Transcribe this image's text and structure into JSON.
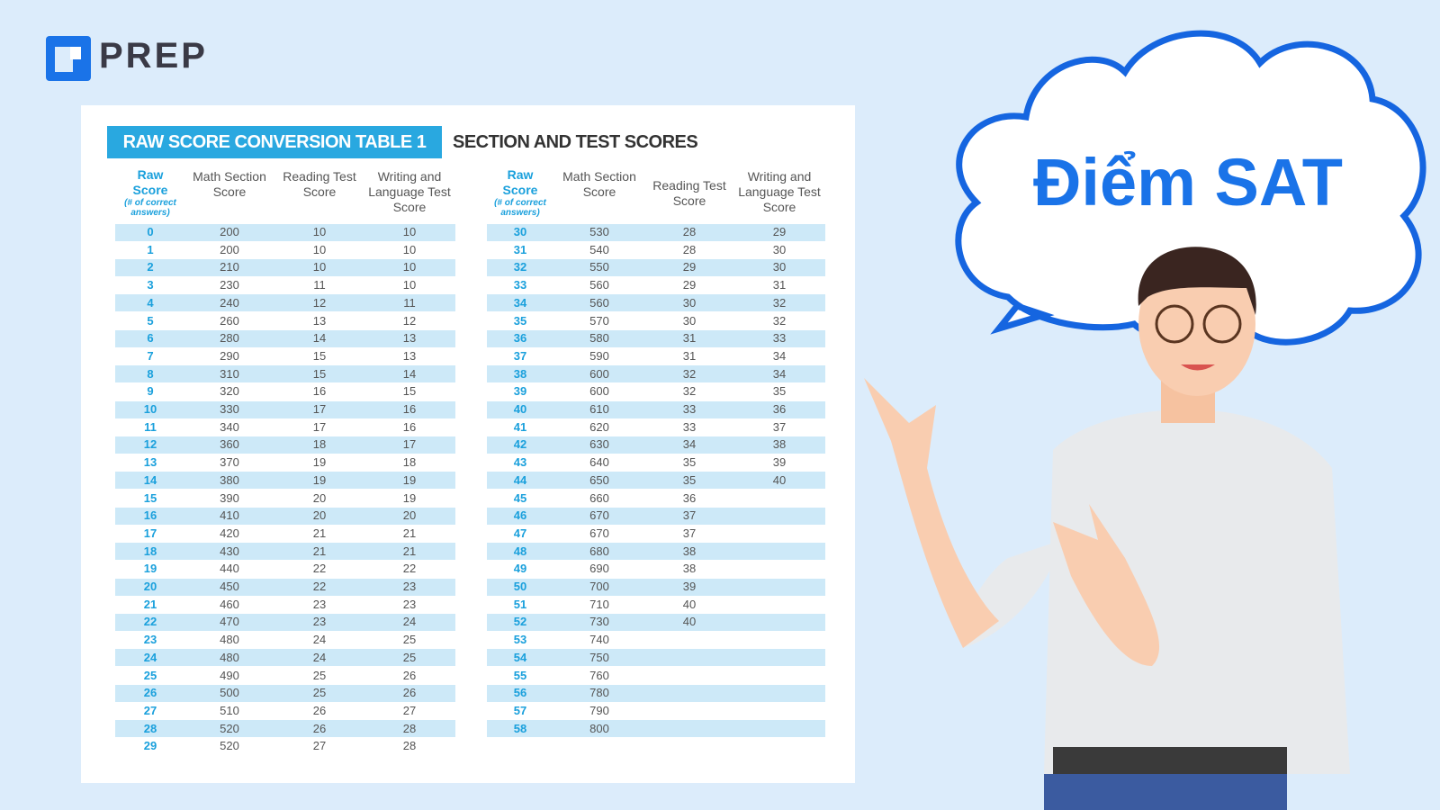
{
  "logo": {
    "text": "PREP"
  },
  "card": {
    "title": "RAW SCORE CONVERSION TABLE 1",
    "subtitle": "SECTION AND TEST SCORES"
  },
  "tables": [
    {
      "headers": [
        "Raw Score",
        "Math Section Score",
        "Reading Test Score",
        "Writing and Language Test Score"
      ],
      "note": "(# of correct answers)",
      "rows": [
        [
          0,
          200,
          10,
          10
        ],
        [
          1,
          200,
          10,
          10
        ],
        [
          2,
          210,
          10,
          10
        ],
        [
          3,
          230,
          11,
          10
        ],
        [
          4,
          240,
          12,
          11
        ],
        [
          5,
          260,
          13,
          12
        ],
        [
          6,
          280,
          14,
          13
        ],
        [
          7,
          290,
          15,
          13
        ],
        [
          8,
          310,
          15,
          14
        ],
        [
          9,
          320,
          16,
          15
        ],
        [
          10,
          330,
          17,
          16
        ],
        [
          11,
          340,
          17,
          16
        ],
        [
          12,
          360,
          18,
          17
        ],
        [
          13,
          370,
          19,
          18
        ],
        [
          14,
          380,
          19,
          19
        ],
        [
          15,
          390,
          20,
          19
        ],
        [
          16,
          410,
          20,
          20
        ],
        [
          17,
          420,
          21,
          21
        ],
        [
          18,
          430,
          21,
          21
        ],
        [
          19,
          440,
          22,
          22
        ],
        [
          20,
          450,
          22,
          23
        ],
        [
          21,
          460,
          23,
          23
        ],
        [
          22,
          470,
          23,
          24
        ],
        [
          23,
          480,
          24,
          25
        ],
        [
          24,
          480,
          24,
          25
        ],
        [
          25,
          490,
          25,
          26
        ],
        [
          26,
          500,
          25,
          26
        ],
        [
          27,
          510,
          26,
          27
        ],
        [
          28,
          520,
          26,
          28
        ],
        [
          29,
          520,
          27,
          28
        ]
      ]
    },
    {
      "headers": [
        "Raw Score",
        "Math Section Score",
        "Reading Test Score",
        "Writing and Language Test Score"
      ],
      "note": "(# of correct answers)",
      "rows": [
        [
          30,
          530,
          28,
          29
        ],
        [
          31,
          540,
          28,
          30
        ],
        [
          32,
          550,
          29,
          30
        ],
        [
          33,
          560,
          29,
          31
        ],
        [
          34,
          560,
          30,
          32
        ],
        [
          35,
          570,
          30,
          32
        ],
        [
          36,
          580,
          31,
          33
        ],
        [
          37,
          590,
          31,
          34
        ],
        [
          38,
          600,
          32,
          34
        ],
        [
          39,
          600,
          32,
          35
        ],
        [
          40,
          610,
          33,
          36
        ],
        [
          41,
          620,
          33,
          37
        ],
        [
          42,
          630,
          34,
          38
        ],
        [
          43,
          640,
          35,
          39
        ],
        [
          44,
          650,
          35,
          40
        ],
        [
          45,
          660,
          36
        ],
        [
          46,
          670,
          37
        ],
        [
          47,
          670,
          37
        ],
        [
          48,
          680,
          38
        ],
        [
          49,
          690,
          38
        ],
        [
          50,
          700,
          39
        ],
        [
          51,
          710,
          40
        ],
        [
          52,
          730,
          40
        ],
        [
          53,
          740
        ],
        [
          54,
          750
        ],
        [
          55,
          760
        ],
        [
          56,
          780
        ],
        [
          57,
          790
        ],
        [
          58,
          800
        ]
      ]
    }
  ],
  "bubble": {
    "text": "Điểm SAT"
  }
}
